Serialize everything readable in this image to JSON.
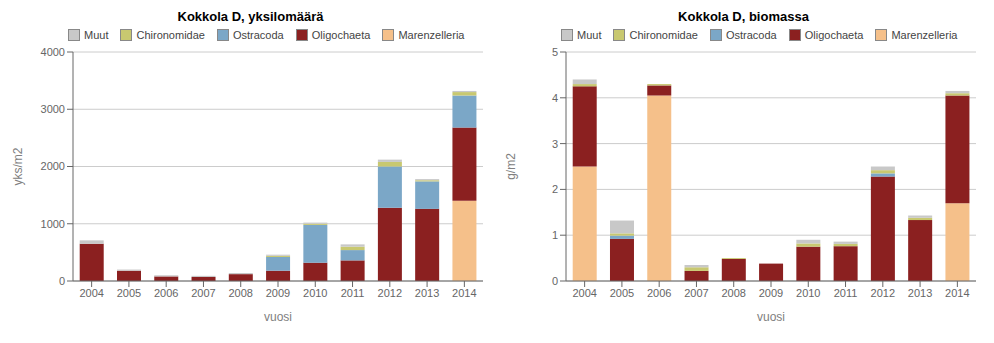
{
  "chart_data": [
    {
      "type": "bar",
      "stacked": true,
      "title": "Kokkola D, yksilomäärä",
      "x_label": "vuosi",
      "y_label": "yks/m2",
      "categories": [
        "2004",
        "2005",
        "2006",
        "2007",
        "2008",
        "2009",
        "2010",
        "2011",
        "2012",
        "2013",
        "2014"
      ],
      "series": [
        {
          "name": "Marenzelleria",
          "color": "#F5C08A",
          "values": [
            0,
            0,
            0,
            0,
            0,
            0,
            0,
            0,
            0,
            0,
            1400
          ]
        },
        {
          "name": "Oligochaeta",
          "color": "#8B2020",
          "values": [
            650,
            180,
            80,
            70,
            120,
            180,
            320,
            360,
            1280,
            1260,
            1280
          ]
        },
        {
          "name": "Ostracoda",
          "color": "#7BA7C7",
          "values": [
            0,
            0,
            0,
            0,
            0,
            240,
            660,
            180,
            720,
            480,
            560
          ]
        },
        {
          "name": "Chironomidae",
          "color": "#C8C870",
          "values": [
            0,
            0,
            0,
            0,
            0,
            20,
            20,
            60,
            80,
            20,
            60
          ]
        },
        {
          "name": "Muut",
          "color": "#C8C8C8",
          "values": [
            60,
            20,
            20,
            20,
            20,
            20,
            20,
            40,
            40,
            20,
            20
          ]
        }
      ],
      "ylim": [
        0,
        4000
      ],
      "yticks": [
        0,
        1000,
        2000,
        3000,
        4000
      ],
      "grid": true,
      "legend": "upper left"
    },
    {
      "type": "bar",
      "stacked": true,
      "title": "Kokkola D, biomassa",
      "x_label": "vuosi",
      "y_label": "g/m2",
      "categories": [
        "2004",
        "2005",
        "2006",
        "2007",
        "2008",
        "2009",
        "2010",
        "2011",
        "2012",
        "2013",
        "2014"
      ],
      "series": [
        {
          "name": "Marenzelleria",
          "color": "#F5C08A",
          "values": [
            2.5,
            0.0,
            4.05,
            0.0,
            0.0,
            0.0,
            0.0,
            0.0,
            0.0,
            0.0,
            1.7
          ]
        },
        {
          "name": "Oligochaeta",
          "color": "#8B2020",
          "values": [
            1.75,
            0.92,
            0.22,
            0.22,
            0.48,
            0.38,
            0.75,
            0.76,
            2.28,
            1.33,
            2.35
          ]
        },
        {
          "name": "Ostracoda",
          "color": "#7BA7C7",
          "values": [
            0.0,
            0.07,
            0.0,
            0.0,
            0.0,
            0.0,
            0.0,
            0.0,
            0.07,
            0.0,
            0.0
          ]
        },
        {
          "name": "Chironomidae",
          "color": "#C8C870",
          "values": [
            0.05,
            0.05,
            0.03,
            0.08,
            0.02,
            0.0,
            0.07,
            0.05,
            0.07,
            0.05,
            0.05
          ]
        },
        {
          "name": "Muut",
          "color": "#C8C8C8",
          "values": [
            0.1,
            0.28,
            0.0,
            0.05,
            0.0,
            0.0,
            0.08,
            0.05,
            0.08,
            0.05,
            0.05
          ]
        }
      ],
      "ylim": [
        0,
        5
      ],
      "yticks": [
        0,
        1,
        2,
        3,
        4,
        5
      ],
      "grid": true,
      "legend": "upper left"
    }
  ]
}
